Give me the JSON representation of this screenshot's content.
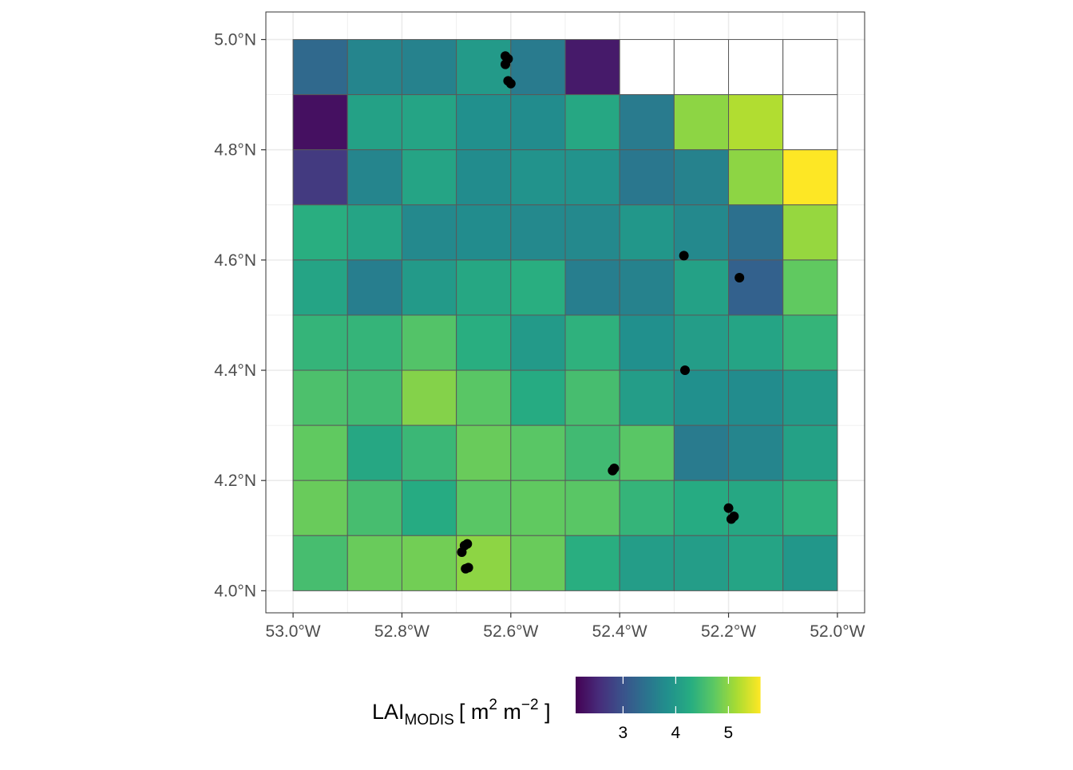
{
  "chart_data": {
    "type": "heatmap",
    "xlim": [
      -53.05,
      -51.95
    ],
    "ylim": [
      3.96,
      5.05
    ],
    "grid": true,
    "cell_size": 0.1,
    "lon_start": -53.0,
    "lat_top": 5.0,
    "x_ticks": [
      {
        "value": -53.0,
        "label": "53.0°W"
      },
      {
        "value": -52.8,
        "label": "52.8°W"
      },
      {
        "value": -52.6,
        "label": "52.6°W"
      },
      {
        "value": -52.4,
        "label": "52.4°W"
      },
      {
        "value": -52.2,
        "label": "52.2°W"
      },
      {
        "value": -52.0,
        "label": "52.0°W"
      }
    ],
    "y_ticks": [
      {
        "value": 4.0,
        "label": "4.0°N"
      },
      {
        "value": 4.2,
        "label": "4.2°N"
      },
      {
        "value": 4.4,
        "label": "4.4°N"
      },
      {
        "value": 4.6,
        "label": "4.6°N"
      },
      {
        "value": 4.8,
        "label": "4.8°N"
      },
      {
        "value": 5.0,
        "label": "5.0°N"
      }
    ],
    "grid_values": [
      [
        3.3,
        3.7,
        3.65,
        4.0,
        3.55,
        2.35,
        null,
        null,
        null,
        null
      ],
      [
        2.25,
        4.1,
        4.15,
        3.85,
        3.8,
        4.2,
        3.55,
        5.0,
        5.2,
        null
      ],
      [
        2.7,
        3.7,
        4.15,
        3.8,
        3.9,
        3.9,
        3.5,
        3.65,
        5.0,
        5.6
      ],
      [
        4.3,
        4.15,
        3.75,
        3.8,
        3.75,
        3.75,
        3.95,
        3.75,
        3.4,
        5.05
      ],
      [
        4.15,
        3.6,
        4.0,
        4.2,
        4.3,
        3.6,
        3.65,
        4.1,
        3.2,
        4.75
      ],
      [
        4.4,
        4.4,
        4.65,
        4.3,
        4.0,
        4.35,
        3.85,
        4.05,
        4.15,
        4.4
      ],
      [
        4.6,
        4.5,
        4.95,
        4.7,
        4.25,
        4.55,
        4.05,
        3.85,
        3.8,
        4.0
      ],
      [
        4.75,
        4.2,
        4.45,
        4.8,
        4.7,
        4.5,
        4.7,
        3.55,
        3.7,
        4.1
      ],
      [
        4.8,
        4.55,
        4.25,
        4.7,
        4.75,
        4.7,
        4.4,
        4.25,
        4.2,
        4.35
      ],
      [
        4.55,
        4.8,
        4.85,
        5.0,
        4.8,
        4.3,
        4.05,
        4.05,
        4.15,
        3.95
      ]
    ],
    "points": [
      [
        -52.61,
        4.97
      ],
      [
        -52.605,
        4.965
      ],
      [
        -52.61,
        4.955
      ],
      [
        -52.6,
        4.92
      ],
      [
        -52.605,
        4.925
      ],
      [
        -52.282,
        4.608
      ],
      [
        -52.18,
        4.568
      ],
      [
        -52.28,
        4.4
      ],
      [
        -52.41,
        4.222
      ],
      [
        -52.413,
        4.218
      ],
      [
        -52.2,
        4.15
      ],
      [
        -52.19,
        4.135
      ],
      [
        -52.195,
        4.13
      ],
      [
        -52.68,
        4.085
      ],
      [
        -52.685,
        4.082
      ],
      [
        -52.69,
        4.07
      ],
      [
        -52.683,
        4.04
      ],
      [
        -52.678,
        4.042
      ]
    ],
    "legend": {
      "title_main": "LAI",
      "title_sub": "MODIS",
      "title_rest": "[ m",
      "title_exp1": "2",
      "title_mid": " m",
      "title_exp2": "−2",
      "title_end": " ]",
      "min": 2.1,
      "max": 5.6,
      "ticks": [
        {
          "value": 3,
          "label": "3"
        },
        {
          "value": 4,
          "label": "4"
        },
        {
          "value": 5,
          "label": "5"
        }
      ],
      "placement": "bottom"
    },
    "colors": {
      "na_fill": "#ffffff",
      "cell_border": "#595959",
      "point": "#000000",
      "panel_border": "#333333",
      "grid": "#ebebeb",
      "tick_text": "#4d4d4d"
    }
  }
}
